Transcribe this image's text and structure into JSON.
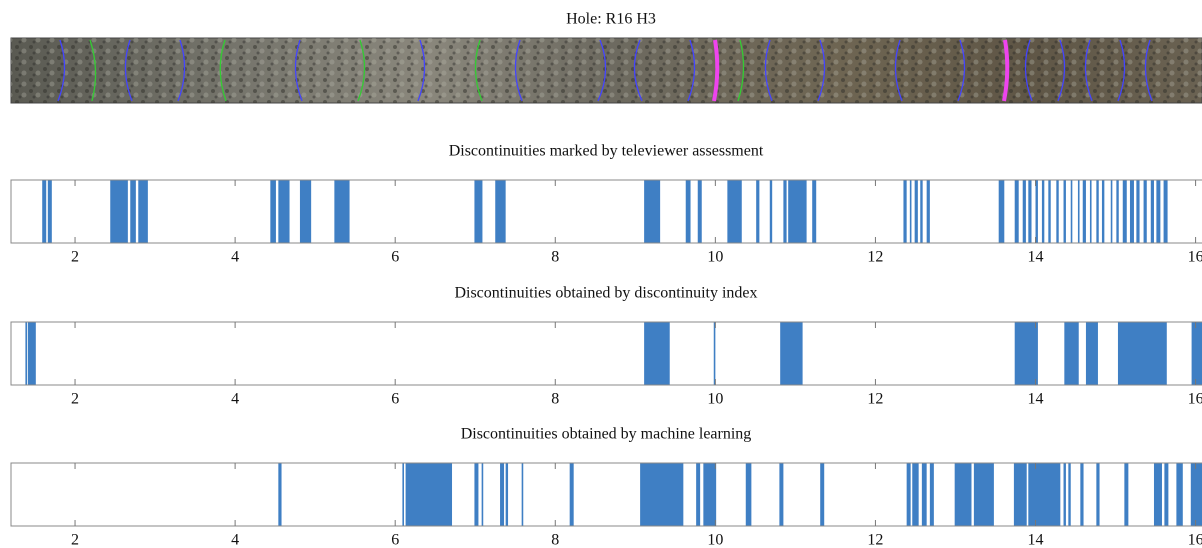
{
  "figure_title": "Hole: R16 H3",
  "chart_data": [
    {
      "type": "interval",
      "title": "Discontinuities marked by televiewer assessment",
      "color": "#3f7fc4",
      "xlim": [
        1.2,
        16.08
      ],
      "xticks": [
        2,
        4,
        6,
        8,
        10,
        12,
        14,
        16
      ],
      "intervals": [
        [
          1.59,
          1.64
        ],
        [
          1.66,
          1.71
        ],
        [
          2.44,
          2.66
        ],
        [
          2.69,
          2.76
        ],
        [
          2.79,
          2.91
        ],
        [
          4.44,
          4.51
        ],
        [
          4.54,
          4.68
        ],
        [
          4.81,
          4.95
        ],
        [
          5.24,
          5.43
        ],
        [
          6.99,
          7.09
        ],
        [
          7.25,
          7.38
        ],
        [
          9.11,
          9.31
        ],
        [
          9.63,
          9.69
        ],
        [
          9.78,
          9.83
        ],
        [
          10.15,
          10.33
        ],
        [
          10.51,
          10.55
        ],
        [
          10.68,
          10.71
        ],
        [
          10.85,
          10.89
        ],
        [
          10.91,
          11.14
        ],
        [
          11.21,
          11.26
        ],
        [
          12.35,
          12.39
        ],
        [
          12.43,
          12.45
        ],
        [
          12.49,
          12.53
        ],
        [
          12.56,
          12.59
        ],
        [
          12.64,
          12.68
        ],
        [
          13.54,
          13.61
        ],
        [
          13.74,
          13.79
        ],
        [
          13.84,
          13.88
        ],
        [
          13.91,
          13.95
        ],
        [
          14.0,
          14.03
        ],
        [
          14.08,
          14.11
        ],
        [
          14.16,
          14.19
        ],
        [
          14.26,
          14.29
        ],
        [
          14.35,
          14.38
        ],
        [
          14.44,
          14.46
        ],
        [
          14.53,
          14.55
        ],
        [
          14.59,
          14.63
        ],
        [
          14.68,
          14.7
        ],
        [
          14.76,
          14.79
        ],
        [
          14.83,
          14.86
        ],
        [
          14.94,
          14.96
        ],
        [
          15.01,
          15.04
        ],
        [
          15.09,
          15.14
        ],
        [
          15.18,
          15.23
        ],
        [
          15.26,
          15.3
        ],
        [
          15.35,
          15.39
        ],
        [
          15.44,
          15.48
        ],
        [
          15.51,
          15.56
        ],
        [
          15.6,
          15.65
        ]
      ]
    },
    {
      "type": "interval",
      "title": "Discontinuities obtained by discontinuity index",
      "color": "#3f7fc4",
      "xlim": [
        1.2,
        16.08
      ],
      "xticks": [
        2,
        4,
        6,
        8,
        10,
        12,
        14,
        16
      ],
      "intervals": [
        [
          1.38,
          1.4
        ],
        [
          1.41,
          1.51
        ],
        [
          9.11,
          9.43
        ],
        [
          9.98,
          10.0
        ],
        [
          10.81,
          11.09
        ],
        [
          13.74,
          14.03
        ],
        [
          14.36,
          14.54
        ],
        [
          14.63,
          14.78
        ],
        [
          15.03,
          15.64
        ],
        [
          15.95,
          16.08
        ]
      ]
    },
    {
      "type": "interval",
      "title": "Discontinuities obtained by machine learning",
      "color": "#3f7fc4",
      "xlim": [
        1.2,
        16.08
      ],
      "xticks": [
        2,
        4,
        6,
        8,
        10,
        12,
        14,
        16
      ],
      "intervals": [
        [
          4.54,
          4.58
        ],
        [
          6.09,
          6.11
        ],
        [
          6.13,
          6.71
        ],
        [
          6.99,
          7.04
        ],
        [
          7.08,
          7.1
        ],
        [
          7.31,
          7.36
        ],
        [
          7.38,
          7.41
        ],
        [
          7.58,
          7.6
        ],
        [
          8.18,
          8.23
        ],
        [
          9.06,
          9.6
        ],
        [
          9.76,
          9.81
        ],
        [
          9.85,
          10.01
        ],
        [
          10.38,
          10.45
        ],
        [
          10.8,
          10.85
        ],
        [
          11.31,
          11.36
        ],
        [
          12.39,
          12.44
        ],
        [
          12.46,
          12.54
        ],
        [
          12.58,
          12.64
        ],
        [
          12.68,
          12.73
        ],
        [
          12.99,
          13.2
        ],
        [
          13.23,
          13.48
        ],
        [
          13.73,
          13.89
        ],
        [
          13.91,
          14.31
        ],
        [
          14.35,
          14.38
        ],
        [
          14.41,
          14.44
        ],
        [
          14.56,
          14.6
        ],
        [
          14.76,
          14.8
        ],
        [
          15.11,
          15.16
        ],
        [
          15.48,
          15.58
        ],
        [
          15.61,
          15.66
        ],
        [
          15.76,
          15.84
        ],
        [
          15.94,
          16.08
        ]
      ]
    }
  ]
}
